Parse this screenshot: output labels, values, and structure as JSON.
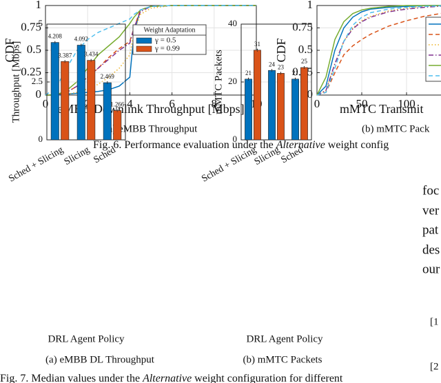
{
  "chart_data": [
    {
      "type": "line",
      "ylabel": "CDF",
      "xlabel": "eMBB Downlink Throughput [Mbps]",
      "caption": "(a)  eMBB Throughput",
      "x": [
        0,
        0.5,
        1,
        1.5,
        2,
        2.5,
        3,
        3.5,
        4,
        4.2,
        4.5,
        5,
        6,
        8,
        10
      ],
      "series": [
        {
          "color": "#0072BD",
          "style": "solid",
          "values": [
            0,
            0,
            0.01,
            0.02,
            0.03,
            0.04,
            0.06,
            0.1,
            0.2,
            0.7,
            0.95,
            0.99,
            1,
            1,
            1
          ]
        },
        {
          "color": "#D95319",
          "style": "dashed",
          "values": [
            0,
            0,
            0.03,
            0.1,
            0.2,
            0.3,
            0.42,
            0.52,
            0.6,
            0.75,
            0.95,
            0.99,
            1,
            1,
            1
          ]
        },
        {
          "color": "#EDB120",
          "style": "dotted",
          "values": [
            0,
            0,
            0.01,
            0.03,
            0.07,
            0.12,
            0.2,
            0.3,
            0.45,
            0.7,
            0.9,
            0.97,
            1,
            1,
            1
          ]
        },
        {
          "color": "#7E2F8E",
          "style": "dashdot",
          "values": [
            0,
            0,
            0.03,
            0.1,
            0.2,
            0.3,
            0.4,
            0.5,
            0.58,
            0.75,
            0.93,
            0.99,
            1,
            1,
            1
          ]
        },
        {
          "color": "#77AC30",
          "style": "solid",
          "values": [
            0,
            0,
            0.05,
            0.15,
            0.3,
            0.45,
            0.55,
            0.65,
            0.8,
            0.87,
            0.95,
            0.99,
            1,
            1,
            1
          ]
        },
        {
          "color": "#4DBEEE",
          "style": "dashed",
          "values": [
            0,
            0.08,
            0.3,
            0.5,
            0.62,
            0.7,
            0.75,
            0.8,
            0.85,
            0.9,
            0.95,
            0.99,
            1,
            1,
            1
          ]
        }
      ],
      "xlim": [
        0,
        10
      ],
      "xticks": [
        0,
        2,
        4,
        6,
        8,
        10
      ],
      "ylim": [
        0,
        1
      ],
      "yticks": [
        0,
        0.25,
        0.5,
        0.75,
        1
      ],
      "grid": true
    },
    {
      "type": "line",
      "ylabel": "CDF",
      "xlabel": "mMTC Transmit",
      "caption": "(b)  mMTC Pack",
      "x": [
        0,
        10,
        20,
        30,
        40,
        50,
        60,
        80,
        100,
        120,
        150
      ],
      "series": [
        {
          "color": "#0072BD",
          "style": "solid",
          "values": [
            0,
            0.1,
            0.5,
            0.75,
            0.87,
            0.93,
            0.96,
            0.98,
            0.99,
            1,
            1
          ]
        },
        {
          "color": "#D95319",
          "style": "dashed",
          "values": [
            0,
            0.03,
            0.25,
            0.45,
            0.55,
            0.62,
            0.68,
            0.77,
            0.83,
            0.88,
            0.93
          ]
        },
        {
          "color": "#EDB120",
          "style": "dotted",
          "values": [
            0,
            0.05,
            0.35,
            0.6,
            0.75,
            0.83,
            0.88,
            0.94,
            0.97,
            0.99,
            1
          ]
        },
        {
          "color": "#7E2F8E",
          "style": "dashdot",
          "values": [
            0,
            0.05,
            0.35,
            0.6,
            0.74,
            0.82,
            0.87,
            0.93,
            0.96,
            0.98,
            1
          ]
        },
        {
          "color": "#77AC30",
          "style": "solid",
          "values": [
            0,
            0.2,
            0.62,
            0.82,
            0.91,
            0.95,
            0.97,
            0.99,
            1,
            1,
            1
          ]
        },
        {
          "color": "#4DBEEE",
          "style": "dashed",
          "values": [
            0,
            0.03,
            0.3,
            0.6,
            0.78,
            0.87,
            0.92,
            0.96,
            0.98,
            0.99,
            1
          ]
        }
      ],
      "xlim": [
        0,
        150
      ],
      "xticks": [
        0,
        50,
        100
      ],
      "ylim": [
        0,
        1
      ],
      "yticks": [
        0,
        0.25,
        0.5,
        0.75,
        1
      ],
      "grid": true
    },
    {
      "type": "bar",
      "ylabel": "Throughput [Mbps]",
      "xlabel": "DRL Agent Policy",
      "caption": "(a)  eMBB DL Throughput",
      "categories": [
        "Sched + Slicing",
        "Slicing",
        "Sched"
      ],
      "legend_title": "Weight Adaptation",
      "series": [
        {
          "name": "γ = 0.5",
          "color": "#0072BD",
          "values": [
            4.208,
            4.092,
            2.469
          ]
        },
        {
          "name": "γ = 0.99",
          "color": "#D95319",
          "values": [
            3.387,
            3.434,
            1.266
          ]
        }
      ],
      "ylim": [
        0,
        5
      ],
      "yticks": [
        0,
        2.5,
        5
      ],
      "grid": true
    },
    {
      "type": "bar",
      "ylabel": "mMTC Packets",
      "xlabel": "DRL Agent Policy",
      "caption": "(b)  mMTC Packets",
      "categories": [
        "Sched + Slicing",
        "Slicing",
        "Sched"
      ],
      "series": [
        {
          "color": "#0072BD",
          "values": [
            21,
            24,
            21
          ]
        },
        {
          "color": "#D95319",
          "values": [
            31,
            23,
            25
          ]
        }
      ],
      "ylim": [
        0,
        40
      ],
      "yticks": [
        0,
        20,
        40
      ],
      "grid": true
    }
  ],
  "fig6_caption": [
    "Fig. 6.  Performance evaluation under the ",
    "Alternative",
    " weight config"
  ],
  "fig7_caption": [
    "Fig. 7.  Median values under the ",
    "Alternative",
    " weight configuration for different"
  ],
  "body_text": [
    "foc",
    "ver",
    "pat",
    "des",
    "our"
  ],
  "references": [
    "[1",
    "[2"
  ]
}
